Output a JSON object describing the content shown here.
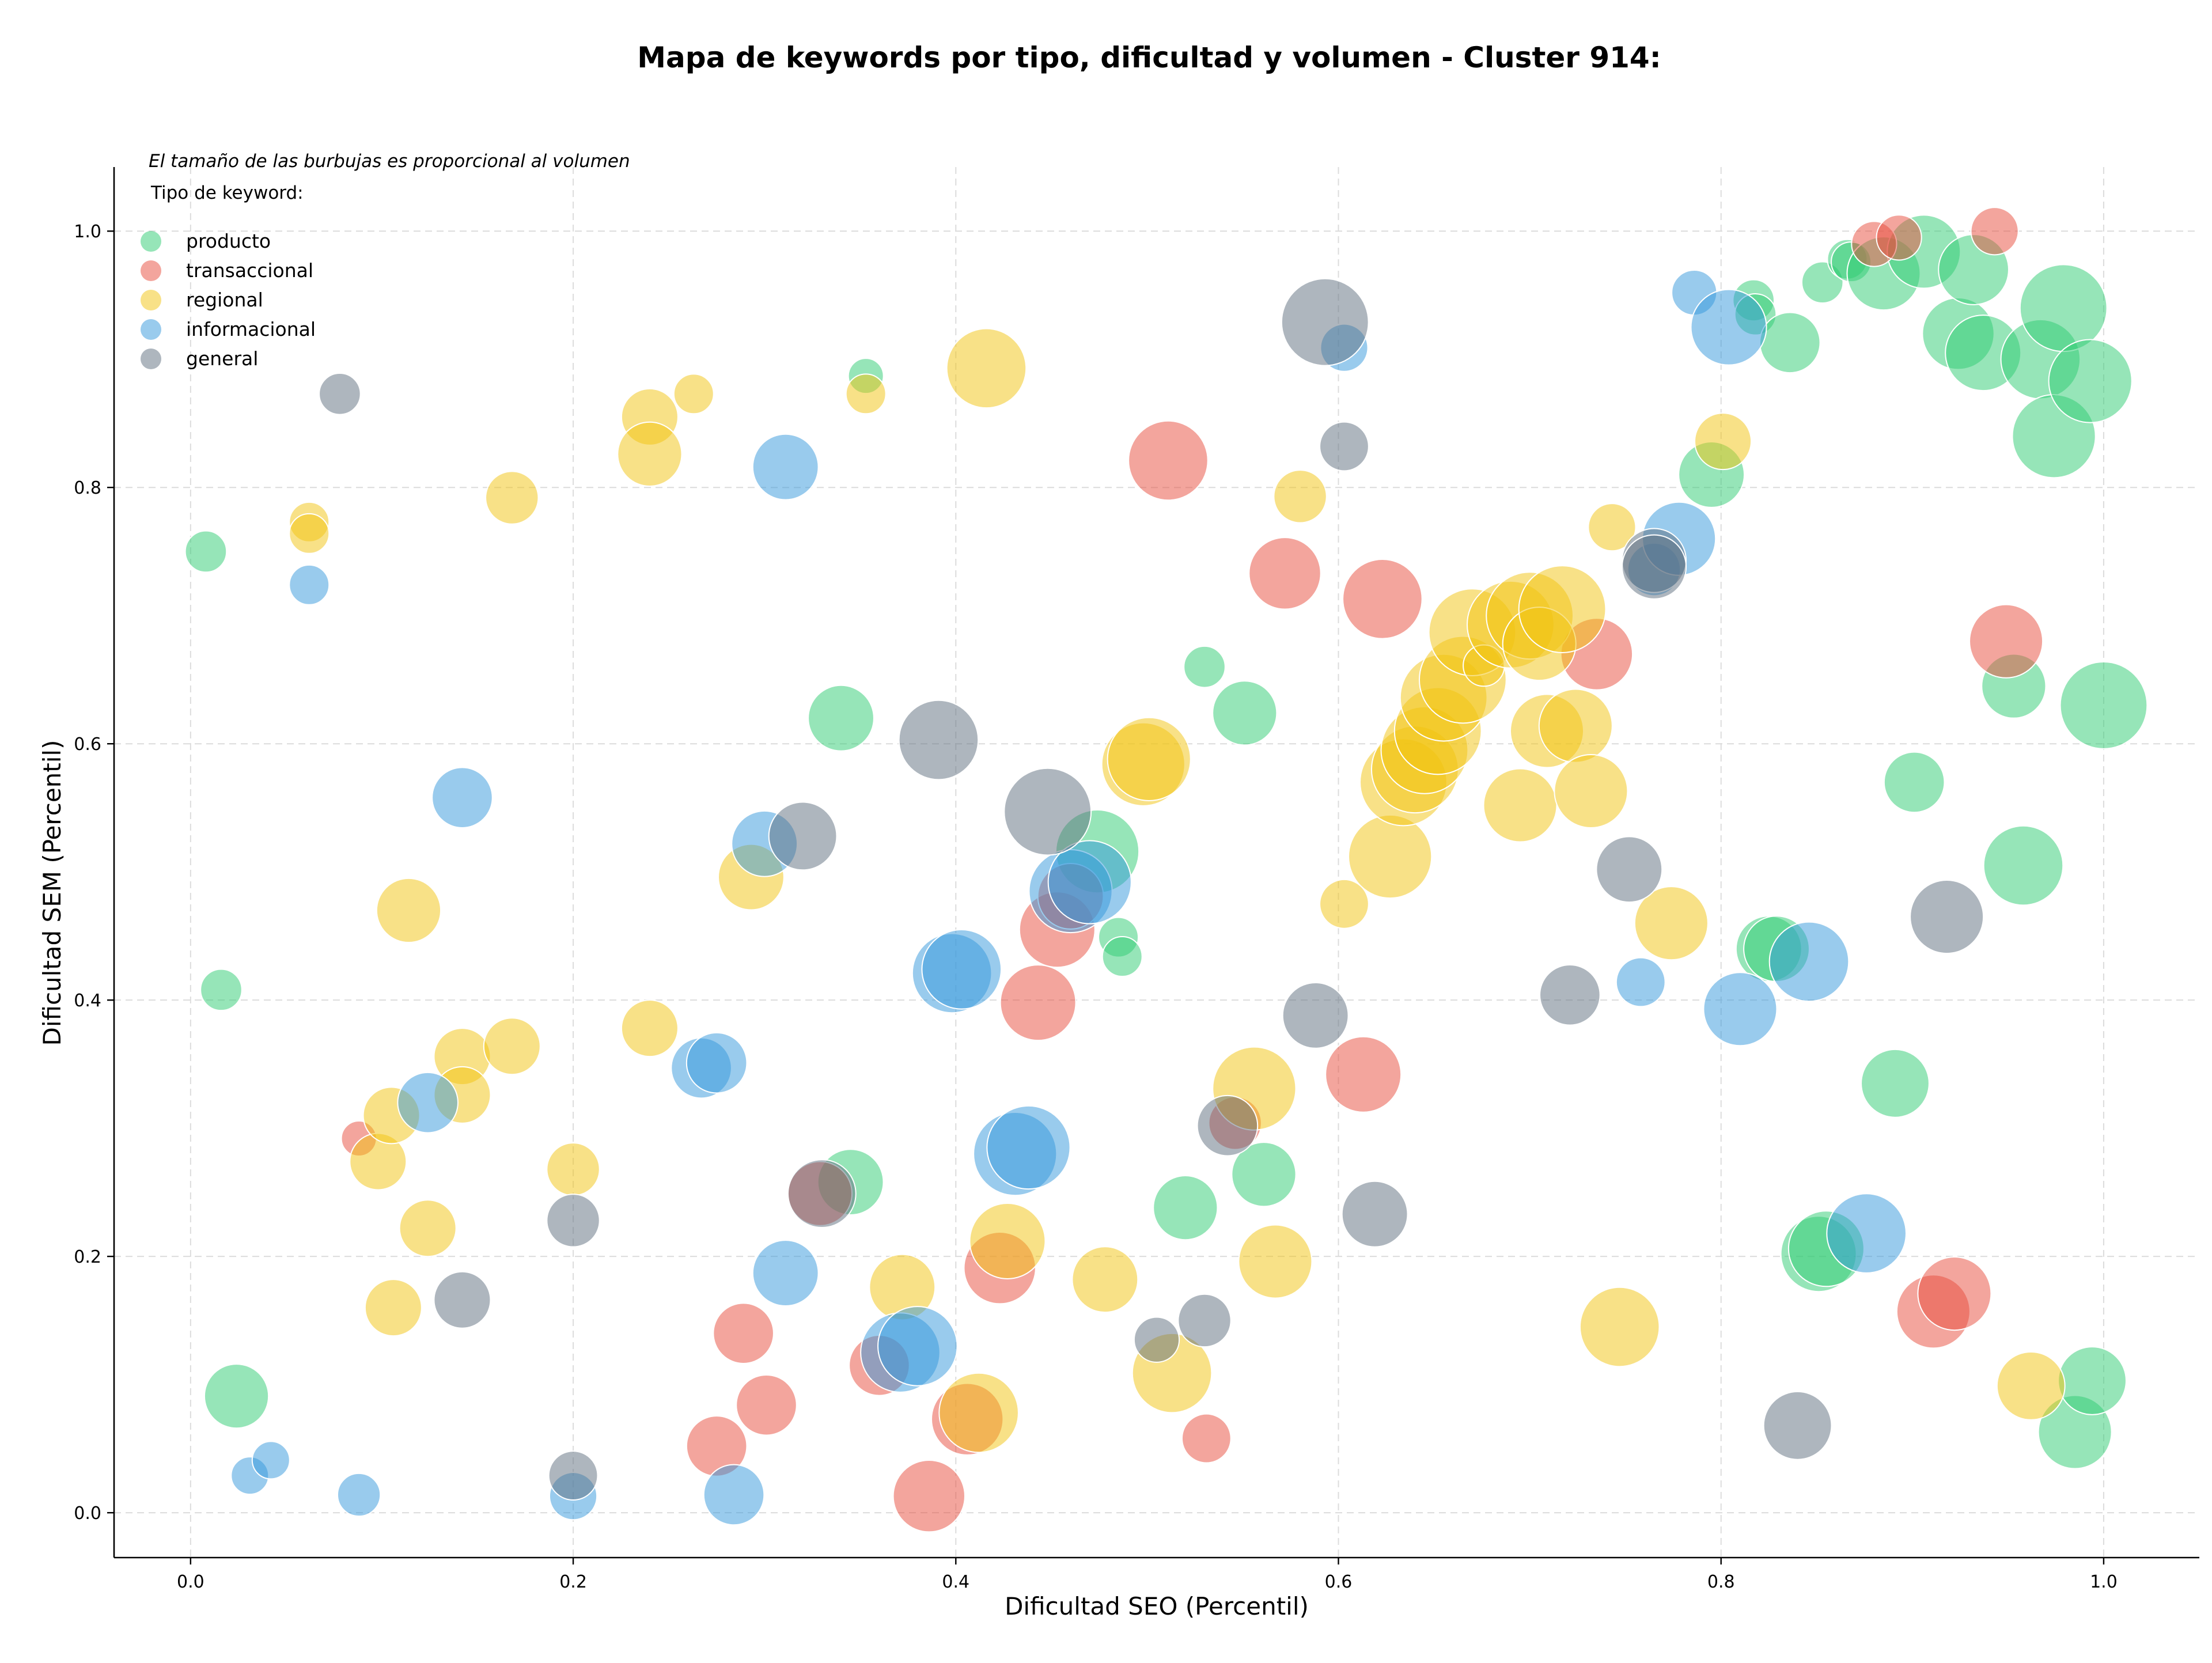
{
  "chart_data": {
    "type": "scatter",
    "title": "Mapa de keywords por tipo, dificultad y volumen - Cluster 914:",
    "xlabel": "Dificultad SEO (Percentil)",
    "ylabel": "Dificultad SEM (Percentil)",
    "xlim": [
      -0.04,
      1.05
    ],
    "ylim": [
      -0.035,
      1.05
    ],
    "xticks": [
      0.0,
      0.2,
      0.4,
      0.6,
      0.8,
      1.0
    ],
    "xtick_labels": [
      "0.0",
      "0.2",
      "0.4",
      "0.6",
      "0.8",
      "1.0"
    ],
    "yticks": [
      0.0,
      0.2,
      0.4,
      0.6,
      0.8,
      1.0
    ],
    "ytick_labels": [
      "0.0",
      "0.2",
      "0.4",
      "0.6",
      "0.8",
      "1.0"
    ],
    "grid": true,
    "legend_position": "top-left",
    "annotation": "El tamaño de las burbujas es proporcional al volumen",
    "legend_title": "Tipo de keyword:",
    "series": [
      {
        "name": "producto",
        "color": "#2ecc71",
        "points": [
          [
            0.008,
            0.75,
            0.3
          ],
          [
            0.016,
            0.408,
            0.3
          ],
          [
            0.024,
            0.091,
            0.6
          ],
          [
            0.34,
            0.62,
            0.62
          ],
          [
            0.345,
            0.258,
            0.62
          ],
          [
            0.353,
            0.887,
            0.22
          ],
          [
            0.474,
            0.516,
            0.85
          ],
          [
            0.485,
            0.449,
            0.28
          ],
          [
            0.487,
            0.434,
            0.28
          ],
          [
            0.52,
            0.238,
            0.6
          ],
          [
            0.53,
            0.66,
            0.3
          ],
          [
            0.551,
            0.624,
            0.6
          ],
          [
            0.561,
            0.264,
            0.6
          ],
          [
            0.795,
            0.81,
            0.62
          ],
          [
            0.817,
            0.946,
            0.3
          ],
          [
            0.818,
            0.935,
            0.3
          ],
          [
            0.825,
            0.44,
            0.62
          ],
          [
            0.829,
            0.44,
            0.62
          ],
          [
            0.836,
            0.913,
            0.55
          ],
          [
            0.853,
            0.96,
            0.3
          ],
          [
            0.851,
            0.202,
            0.75
          ],
          [
            0.855,
            0.206,
            0.75
          ],
          [
            0.866,
            0.978,
            0.28
          ],
          [
            0.868,
            0.976,
            0.28
          ],
          [
            0.885,
            0.967,
            0.72
          ],
          [
            0.891,
            0.335,
            0.65
          ],
          [
            0.901,
            0.57,
            0.55
          ],
          [
            0.906,
            0.984,
            0.72
          ],
          [
            0.924,
            0.92,
            0.7
          ],
          [
            0.932,
            0.97,
            0.68
          ],
          [
            0.937,
            0.905,
            0.75
          ],
          [
            0.953,
            0.645,
            0.6
          ],
          [
            0.958,
            0.505,
            0.8
          ],
          [
            0.967,
            0.9,
            0.8
          ],
          [
            0.974,
            0.84,
            0.85
          ],
          [
            0.979,
            0.94,
            0.9
          ],
          [
            0.985,
            0.063,
            0.72
          ],
          [
            0.994,
            0.103,
            0.65
          ],
          [
            0.993,
            0.883,
            0.85
          ],
          [
            1.0,
            0.63,
            0.9
          ]
        ]
      },
      {
        "name": "transaccional",
        "color": "#e74c3c",
        "points": [
          [
            0.088,
            0.292,
            0.22
          ],
          [
            0.275,
            0.052,
            0.55
          ],
          [
            0.289,
            0.14,
            0.55
          ],
          [
            0.301,
            0.084,
            0.55
          ],
          [
            0.329,
            0.249,
            0.6
          ],
          [
            0.36,
            0.115,
            0.55
          ],
          [
            0.386,
            0.013,
            0.7
          ],
          [
            0.406,
            0.073,
            0.7
          ],
          [
            0.423,
            0.191,
            0.7
          ],
          [
            0.443,
            0.398,
            0.75
          ],
          [
            0.453,
            0.455,
            0.75
          ],
          [
            0.46,
            0.481,
            0.62
          ],
          [
            0.511,
            0.821,
            0.8
          ],
          [
            0.531,
            0.058,
            0.4
          ],
          [
            0.546,
            0.304,
            0.45
          ],
          [
            0.572,
            0.733,
            0.7
          ],
          [
            0.613,
            0.342,
            0.75
          ],
          [
            0.623,
            0.713,
            0.8
          ],
          [
            0.735,
            0.67,
            0.7
          ],
          [
            0.88,
            0.99,
            0.35
          ],
          [
            0.893,
            0.995,
            0.35
          ],
          [
            0.911,
            0.157,
            0.72
          ],
          [
            0.922,
            0.171,
            0.72
          ],
          [
            0.943,
            1.0,
            0.38
          ],
          [
            0.949,
            0.68,
            0.72
          ]
        ]
      },
      {
        "name": "regional",
        "color": "#f1c40f",
        "points": [
          [
            0.062,
            0.773,
            0.28
          ],
          [
            0.062,
            0.764,
            0.28
          ],
          [
            0.098,
            0.274,
            0.5
          ],
          [
            0.105,
            0.31,
            0.5
          ],
          [
            0.106,
            0.16,
            0.5
          ],
          [
            0.114,
            0.47,
            0.6
          ],
          [
            0.124,
            0.222,
            0.5
          ],
          [
            0.142,
            0.356,
            0.5
          ],
          [
            0.142,
            0.326,
            0.5
          ],
          [
            0.168,
            0.364,
            0.5
          ],
          [
            0.168,
            0.792,
            0.45
          ],
          [
            0.2,
            0.268,
            0.45
          ],
          [
            0.24,
            0.378,
            0.5
          ],
          [
            0.24,
            0.855,
            0.5
          ],
          [
            0.24,
            0.826,
            0.6
          ],
          [
            0.263,
            0.873,
            0.28
          ],
          [
            0.293,
            0.496,
            0.62
          ],
          [
            0.353,
            0.873,
            0.28
          ],
          [
            0.372,
            0.176,
            0.62
          ],
          [
            0.412,
            0.078,
            0.8
          ],
          [
            0.416,
            0.893,
            0.8
          ],
          [
            0.427,
            0.212,
            0.75
          ],
          [
            0.478,
            0.182,
            0.62
          ],
          [
            0.498,
            0.584,
            0.85
          ],
          [
            0.501,
            0.588,
            0.85
          ],
          [
            0.513,
            0.109,
            0.8
          ],
          [
            0.556,
            0.331,
            0.85
          ],
          [
            0.567,
            0.196,
            0.72
          ],
          [
            0.58,
            0.793,
            0.45
          ],
          [
            0.603,
            0.475,
            0.4
          ],
          [
            0.627,
            0.512,
            0.85
          ],
          [
            0.634,
            0.57,
            0.9
          ],
          [
            0.64,
            0.58,
            0.9
          ],
          [
            0.645,
            0.595,
            0.9
          ],
          [
            0.652,
            0.61,
            0.9
          ],
          [
            0.655,
            0.636,
            0.9
          ],
          [
            0.665,
            0.65,
            0.9
          ],
          [
            0.67,
            0.687,
            0.9
          ],
          [
            0.676,
            0.661,
            0.3
          ],
          [
            0.69,
            0.693,
            0.9
          ],
          [
            0.695,
            0.552,
            0.72
          ],
          [
            0.7,
            0.7,
            0.9
          ],
          [
            0.705,
            0.678,
            0.72
          ],
          [
            0.709,
            0.61,
            0.72
          ],
          [
            0.717,
            0.705,
            0.9
          ],
          [
            0.724,
            0.614,
            0.72
          ],
          [
            0.732,
            0.563,
            0.72
          ],
          [
            0.743,
            0.769,
            0.38
          ],
          [
            0.747,
            0.145,
            0.8
          ],
          [
            0.774,
            0.46,
            0.72
          ],
          [
            0.801,
            0.836,
            0.5
          ],
          [
            0.962,
            0.099,
            0.65
          ]
        ]
      },
      {
        "name": "informacional",
        "color": "#3498db",
        "points": [
          [
            0.031,
            0.029,
            0.25
          ],
          [
            0.042,
            0.041,
            0.25
          ],
          [
            0.062,
            0.724,
            0.28
          ],
          [
            0.088,
            0.014,
            0.32
          ],
          [
            0.124,
            0.32,
            0.55
          ],
          [
            0.142,
            0.558,
            0.55
          ],
          [
            0.2,
            0.013,
            0.38
          ],
          [
            0.267,
            0.347,
            0.55
          ],
          [
            0.275,
            0.351,
            0.55
          ],
          [
            0.284,
            0.014,
            0.55
          ],
          [
            0.3,
            0.522,
            0.62
          ],
          [
            0.311,
            0.187,
            0.62
          ],
          [
            0.311,
            0.816,
            0.62
          ],
          [
            0.371,
            0.125,
            0.8
          ],
          [
            0.38,
            0.13,
            0.8
          ],
          [
            0.398,
            0.421,
            0.8
          ],
          [
            0.403,
            0.424,
            0.8
          ],
          [
            0.431,
            0.28,
            0.85
          ],
          [
            0.438,
            0.285,
            0.85
          ],
          [
            0.46,
            0.485,
            0.85
          ],
          [
            0.47,
            0.492,
            0.85
          ],
          [
            0.603,
            0.909,
            0.38
          ],
          [
            0.765,
            0.736,
            0.45
          ],
          [
            0.758,
            0.414,
            0.4
          ],
          [
            0.778,
            0.76,
            0.72
          ],
          [
            0.786,
            0.952,
            0.35
          ],
          [
            0.804,
            0.925,
            0.75
          ],
          [
            0.81,
            0.393,
            0.72
          ],
          [
            0.846,
            0.43,
            0.8
          ],
          [
            0.876,
            0.218,
            0.8
          ]
        ]
      },
      {
        "name": "general",
        "color": "#5d6d7e",
        "points": [
          [
            0.078,
            0.873,
            0.3
          ],
          [
            0.142,
            0.166,
            0.5
          ],
          [
            0.2,
            0.228,
            0.45
          ],
          [
            0.2,
            0.029,
            0.4
          ],
          [
            0.32,
            0.528,
            0.65
          ],
          [
            0.33,
            0.249,
            0.65
          ],
          [
            0.391,
            0.603,
            0.8
          ],
          [
            0.448,
            0.547,
            0.9
          ],
          [
            0.505,
            0.135,
            0.35
          ],
          [
            0.53,
            0.15,
            0.45
          ],
          [
            0.542,
            0.302,
            0.55
          ],
          [
            0.588,
            0.388,
            0.62
          ],
          [
            0.593,
            0.929,
            0.9
          ],
          [
            0.603,
            0.832,
            0.4
          ],
          [
            0.619,
            0.233,
            0.62
          ],
          [
            0.721,
            0.404,
            0.55
          ],
          [
            0.752,
            0.502,
            0.62
          ],
          [
            0.765,
            0.743,
            0.6
          ],
          [
            0.765,
            0.738,
            0.6
          ],
          [
            0.84,
            0.068,
            0.65
          ],
          [
            0.918,
            0.465,
            0.72
          ]
        ]
      }
    ]
  }
}
